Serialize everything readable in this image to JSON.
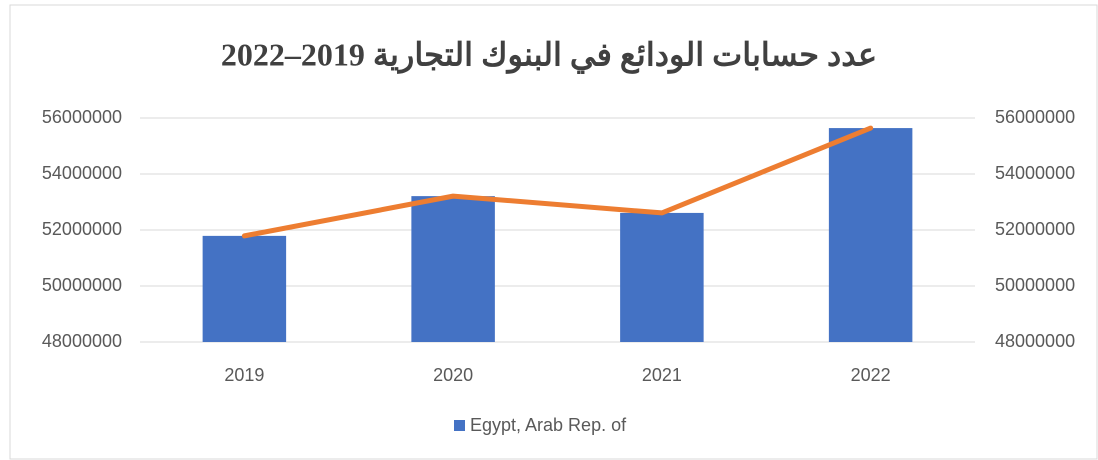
{
  "chart_data": {
    "type": "bar",
    "title": "عدد حسابات الودائع في البنوك التجارية 2019–2022",
    "categories": [
      "2019",
      "2020",
      "2021",
      "2022"
    ],
    "series": [
      {
        "name": "Egypt, Arab Rep. of",
        "type": "bar",
        "color": "#4472c4",
        "values": [
          51790000,
          53210000,
          52610000,
          55640000
        ]
      },
      {
        "type": "line",
        "axis": "y2",
        "color": "#ed7d31",
        "values": [
          51790000,
          53210000,
          52610000,
          55640000
        ]
      }
    ],
    "ylim": [
      48000000,
      56000000
    ],
    "yticks": [
      48000000,
      50000000,
      52000000,
      54000000,
      56000000
    ],
    "y2lim": [
      48000000,
      56000000
    ],
    "y2ticks": [
      48000000,
      50000000,
      52000000,
      54000000,
      56000000
    ],
    "grid": true,
    "legend": "bottom"
  }
}
